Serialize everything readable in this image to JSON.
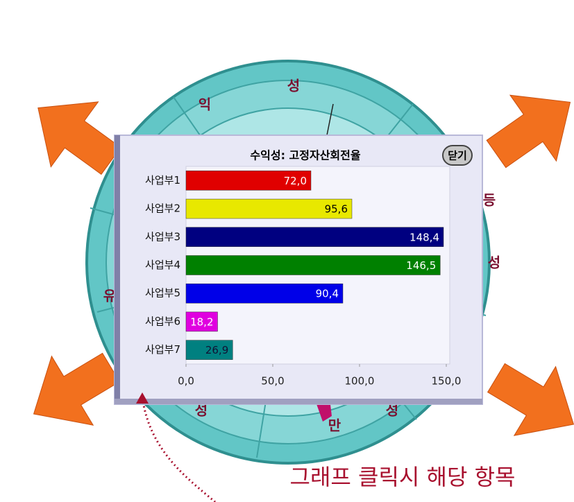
{
  "chart_data": {
    "type": "bar",
    "orientation": "horizontal",
    "title": "수익성: 고정자산회전율",
    "categories": [
      "사업부1",
      "사업부2",
      "사업부3",
      "사업부4",
      "사업부5",
      "사업부6",
      "사업부7"
    ],
    "values": [
      72.0,
      95.6,
      148.4,
      146.5,
      90.4,
      18.2,
      26.9
    ],
    "value_labels": [
      "72,0",
      "95,6",
      "148,4",
      "146,5",
      "90,4",
      "18,2",
      "26,9"
    ],
    "colors": [
      "#e00000",
      "#e8e800",
      "#000080",
      "#008000",
      "#0000e8",
      "#e000e0",
      "#008080"
    ],
    "xlim": [
      0,
      150
    ],
    "xticks": [
      {
        "value": 0,
        "label": "0,0"
      },
      {
        "value": 50,
        "label": "50,0"
      },
      {
        "value": 100,
        "label": "100,0"
      },
      {
        "value": 150,
        "label": "150,0"
      }
    ]
  },
  "close_button": "닫기",
  "wheel_labels": [
    "성",
    "익",
    "등",
    "성",
    "유",
    "성",
    "만",
    "성"
  ],
  "caption": "그래프 클릭시 해당 항목"
}
